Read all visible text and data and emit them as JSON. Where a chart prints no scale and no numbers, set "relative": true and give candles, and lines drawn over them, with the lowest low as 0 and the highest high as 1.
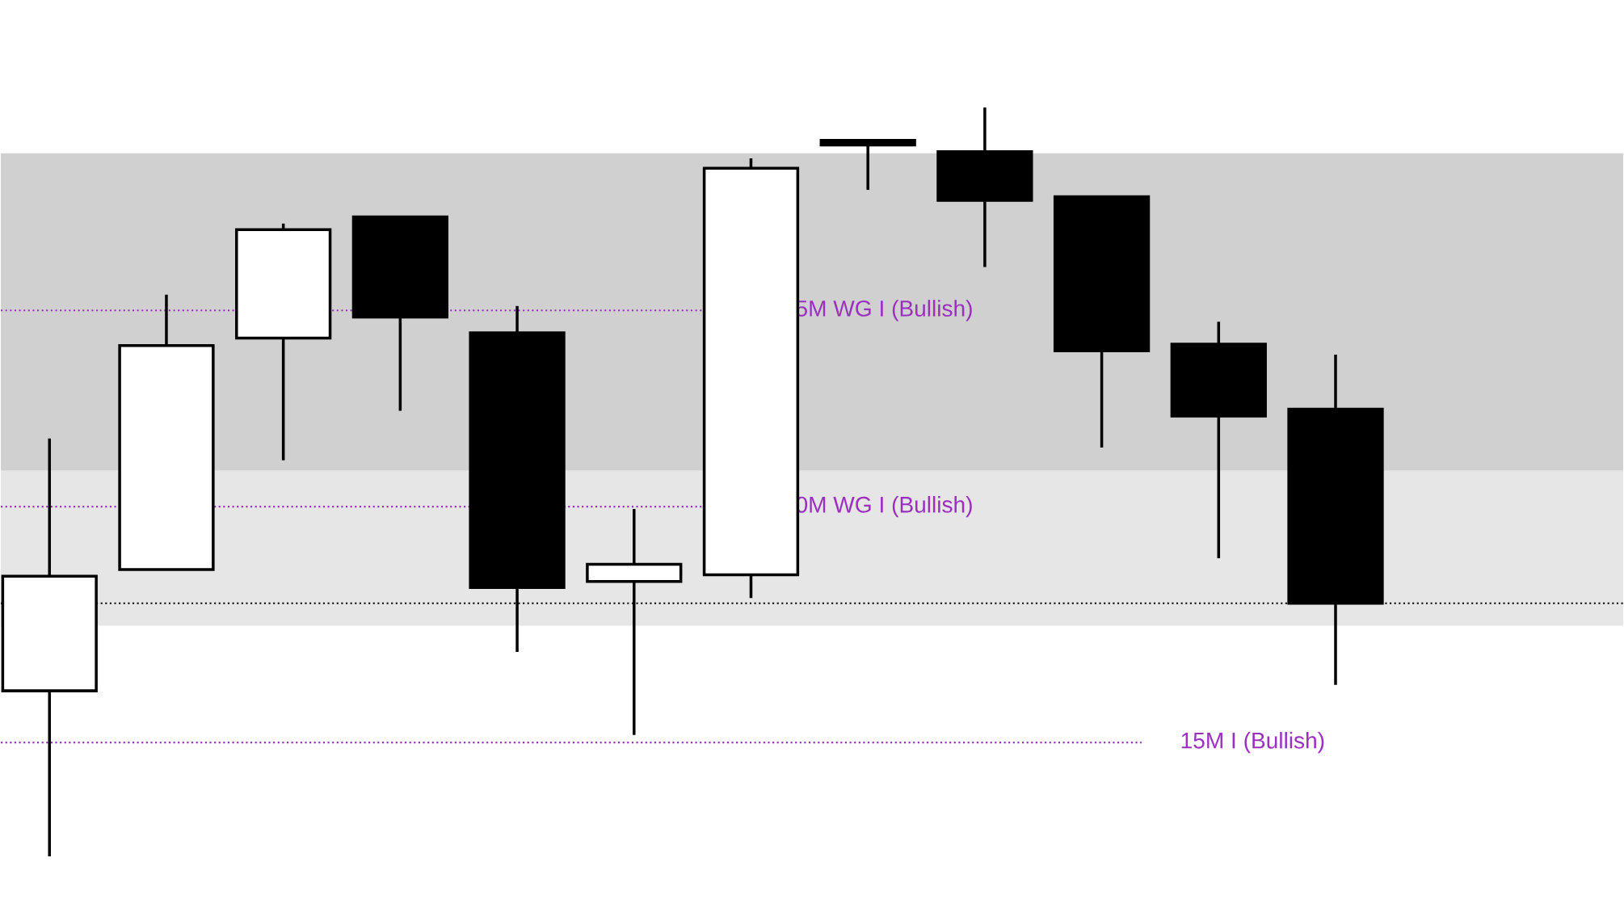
{
  "chart_data": {
    "type": "candlestick",
    "relative": true,
    "categories": [
      null,
      null,
      null,
      null,
      null,
      null,
      null,
      null,
      null,
      null,
      null,
      null
    ],
    "ohlc": [
      [
        0.221,
        0.558,
        0.0,
        0.374
      ],
      [
        0.383,
        0.75,
        0.383,
        0.682
      ],
      [
        0.692,
        0.845,
        0.529,
        0.837
      ],
      [
        0.854,
        0.854,
        0.595,
        0.72
      ],
      [
        0.699,
        0.735,
        0.273,
        0.359
      ],
      [
        0.367,
        0.464,
        0.162,
        0.39
      ],
      [
        0.376,
        0.932,
        0.345,
        0.919
      ],
      [
        0.956,
        0.956,
        0.89,
        0.95
      ],
      [
        0.941,
        1.0,
        0.787,
        0.876
      ],
      [
        0.881,
        0.881,
        0.546,
        0.675
      ],
      [
        0.684,
        0.714,
        0.398,
        0.588
      ],
      [
        0.597,
        0.67,
        0.229,
        0.338
      ]
    ],
    "bands": [
      {
        "axis": "y",
        "from": 0.515,
        "to": 0.939,
        "color": "#d0d0d0"
      },
      {
        "axis": "y",
        "from": 0.308,
        "to": 0.515,
        "color": "#e6e6e6"
      }
    ],
    "ref_lines": [
      {
        "axis": "y",
        "value": 0.729,
        "label": "5M WG I (Bullish)",
        "color": "#9b30c0",
        "line_style": "dotted"
      },
      {
        "axis": "y",
        "value": 0.467,
        "label": "0M WG I (Bullish)",
        "color": "#9b30c0",
        "line_style": "dotted"
      },
      {
        "axis": "y",
        "value": 0.152,
        "label": "15M I (Bullish)",
        "color": "#9b30c0",
        "line_style": "dotted"
      },
      {
        "axis": "y",
        "value": 0.338,
        "color": "#000000",
        "line_style": "dotted"
      }
    ]
  }
}
